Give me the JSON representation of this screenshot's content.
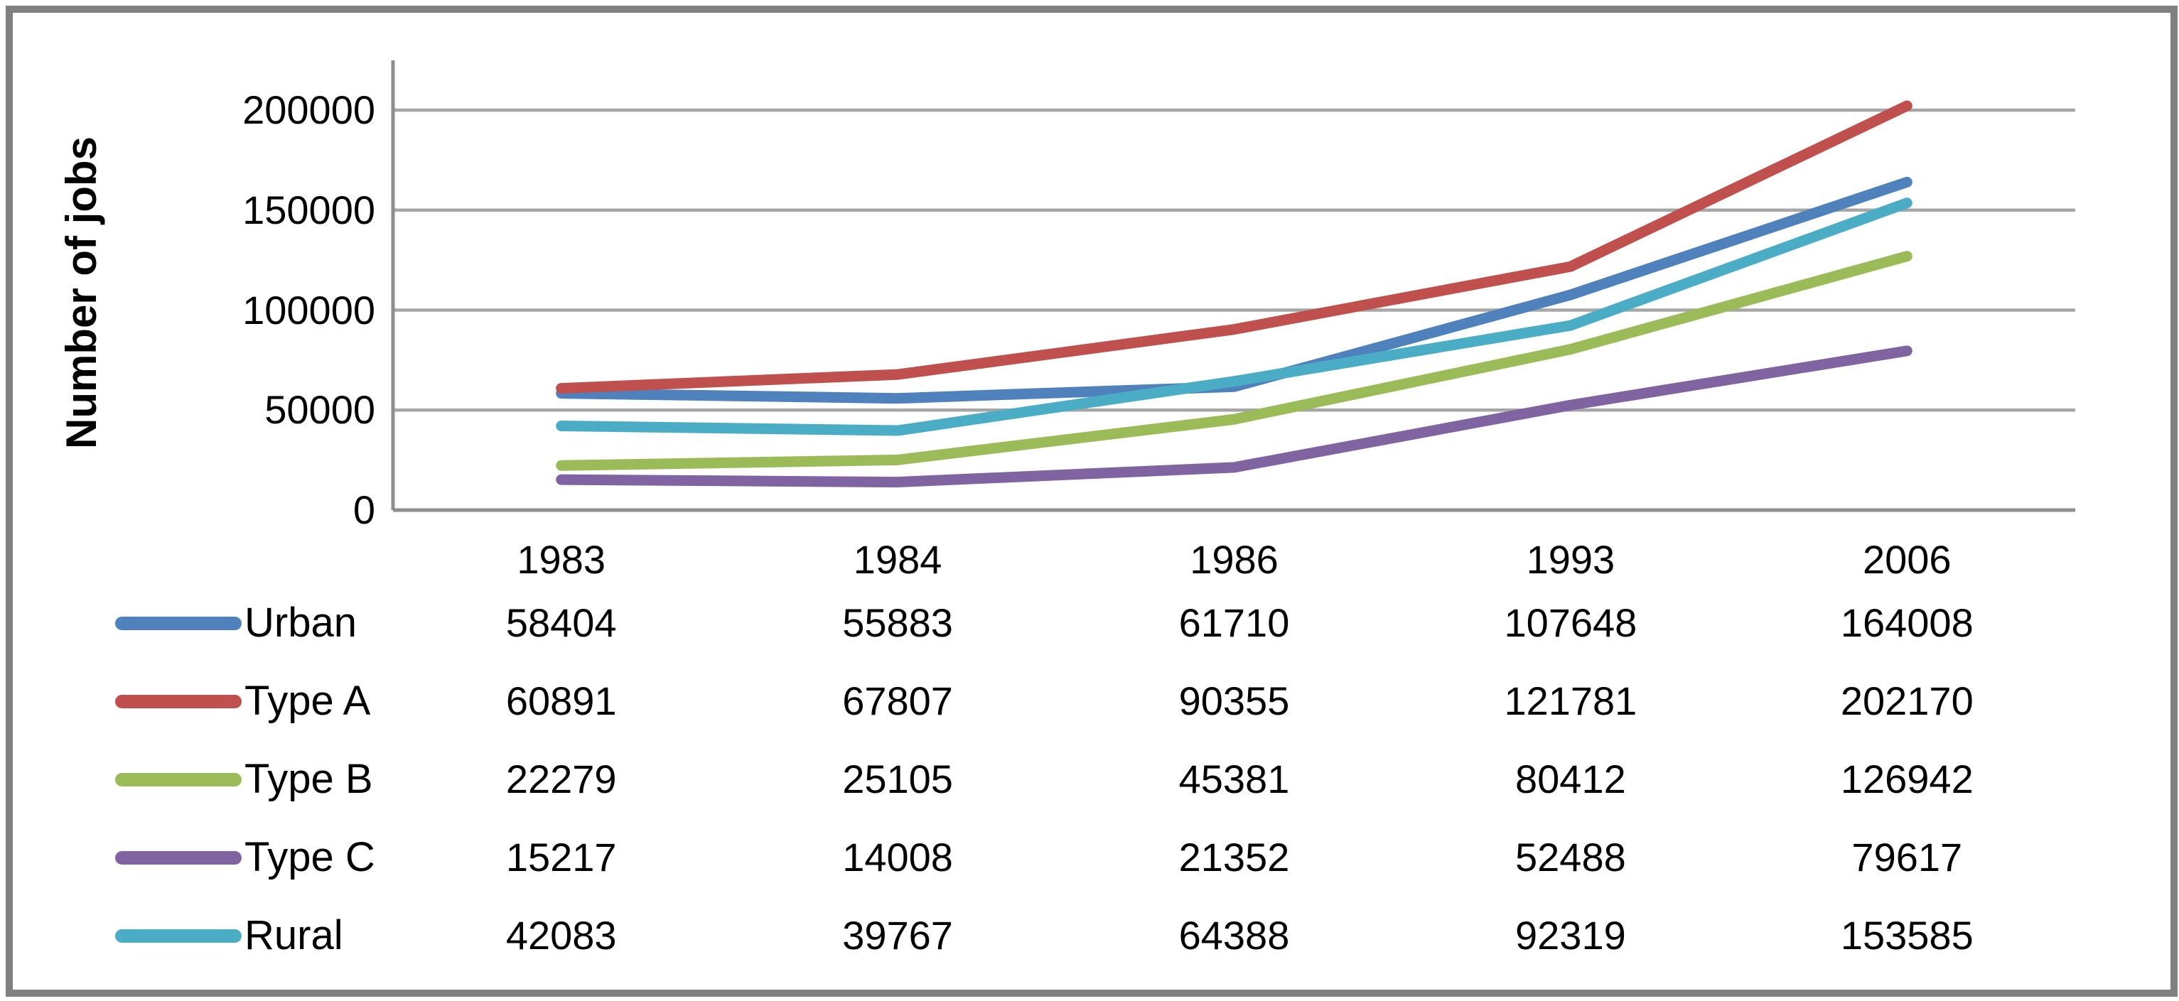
{
  "chart_data": {
    "type": "line",
    "title": "",
    "xlabel": "",
    "ylabel": "Number of jobs",
    "categories": [
      "1983",
      "1984",
      "1986",
      "1993",
      "2006"
    ],
    "series": [
      {
        "name": "Urban",
        "color": "#4F81BD",
        "values": [
          58404,
          55883,
          61710,
          107648,
          164008
        ]
      },
      {
        "name": "Type A",
        "color": "#C0504D",
        "values": [
          60891,
          67807,
          90355,
          121781,
          202170
        ]
      },
      {
        "name": "Type B",
        "color": "#9BBB59",
        "values": [
          22279,
          25105,
          45381,
          80412,
          126942
        ]
      },
      {
        "name": "Type C",
        "color": "#8064A2",
        "values": [
          15217,
          14008,
          21352,
          52488,
          79617
        ]
      },
      {
        "name": "Rural",
        "color": "#4BACC6",
        "values": [
          42083,
          39767,
          64388,
          92319,
          153585
        ]
      }
    ],
    "yticks": [
      {
        "value": 0,
        "label": "0"
      },
      {
        "value": 50000,
        "label": "50000"
      },
      {
        "value": 100000,
        "label": "100000"
      },
      {
        "value": 150000,
        "label": "150000"
      },
      {
        "value": 200000,
        "label": "200000"
      }
    ],
    "ylim": [
      0,
      220000
    ],
    "grid": true,
    "legend_position": "bottom-table",
    "grid_color": "#A6A6A6",
    "axis_color": "#8E8E8E",
    "border_color": "#808080",
    "text_color": "#000000"
  }
}
